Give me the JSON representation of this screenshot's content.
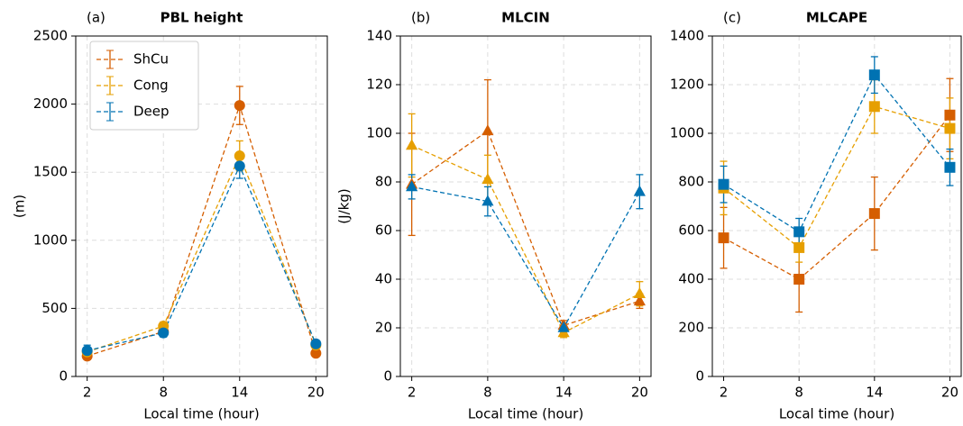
{
  "chart_data": [
    {
      "type": "line",
      "panel_label": "(a)",
      "title": "PBL height",
      "y_label": "(m)",
      "x_label": "Local time (hour)",
      "marker": "circle",
      "x": [
        2,
        8,
        14,
        20
      ],
      "xlim": [
        1.1,
        20.9
      ],
      "xticks": [
        2,
        8,
        14,
        20
      ],
      "ylim": [
        0,
        2500
      ],
      "yticks": [
        0,
        500,
        1000,
        1500,
        2000,
        2500
      ],
      "grid": true,
      "legend": "upper left",
      "series": [
        {
          "name": "ShCu",
          "color": "#d55e00",
          "values": [
            150,
            330,
            1990,
            170
          ],
          "errors": [
            20,
            30,
            140,
            20
          ]
        },
        {
          "name": "Cong",
          "color": "#e69f00",
          "values": [
            180,
            370,
            1620,
            230
          ],
          "errors": [
            25,
            30,
            110,
            25
          ]
        },
        {
          "name": "Deep",
          "color": "#0072b2",
          "values": [
            190,
            320,
            1545,
            240
          ],
          "errors": [
            40,
            30,
            90,
            25
          ]
        }
      ]
    },
    {
      "type": "line",
      "panel_label": "(b)",
      "title": "MLCIN",
      "y_label": "(J/kg)",
      "x_label": "Local time (hour)",
      "marker": "triangle",
      "x": [
        2,
        8,
        14,
        20
      ],
      "xlim": [
        1.1,
        20.9
      ],
      "xticks": [
        2,
        8,
        14,
        20
      ],
      "ylim": [
        0,
        140
      ],
      "yticks": [
        0,
        20,
        40,
        60,
        80,
        100,
        120,
        140
      ],
      "grid": true,
      "series": [
        {
          "name": "ShCu",
          "color": "#d55e00",
          "values": [
            79,
            101,
            21,
            31
          ],
          "errors": [
            21,
            21,
            2,
            3
          ]
        },
        {
          "name": "Cong",
          "color": "#e69f00",
          "values": [
            95,
            81,
            18,
            34
          ],
          "errors": [
            13,
            10,
            2,
            5
          ]
        },
        {
          "name": "Deep",
          "color": "#0072b2",
          "values": [
            78,
            72,
            20,
            76
          ],
          "errors": [
            5,
            6,
            2,
            7
          ]
        }
      ]
    },
    {
      "type": "line",
      "panel_label": "(c)",
      "title": "MLCAPE",
      "x_label": "Local time (hour)",
      "marker": "square",
      "x": [
        2,
        8,
        14,
        20
      ],
      "xlim": [
        1.1,
        20.9
      ],
      "xticks": [
        2,
        8,
        14,
        20
      ],
      "ylim": [
        0,
        1400
      ],
      "yticks": [
        0,
        200,
        400,
        600,
        800,
        1000,
        1200,
        1400
      ],
      "grid": true,
      "series": [
        {
          "name": "ShCu",
          "color": "#d55e00",
          "values": [
            570,
            400,
            670,
            1075
          ],
          "errors": [
            125,
            135,
            150,
            150
          ]
        },
        {
          "name": "Cong",
          "color": "#e69f00",
          "values": [
            775,
            530,
            1110,
            1020
          ],
          "errors": [
            110,
            60,
            110,
            125
          ]
        },
        {
          "name": "Deep",
          "color": "#0072b2",
          "values": [
            790,
            595,
            1240,
            860
          ],
          "errors": [
            75,
            55,
            75,
            75
          ]
        }
      ]
    }
  ]
}
